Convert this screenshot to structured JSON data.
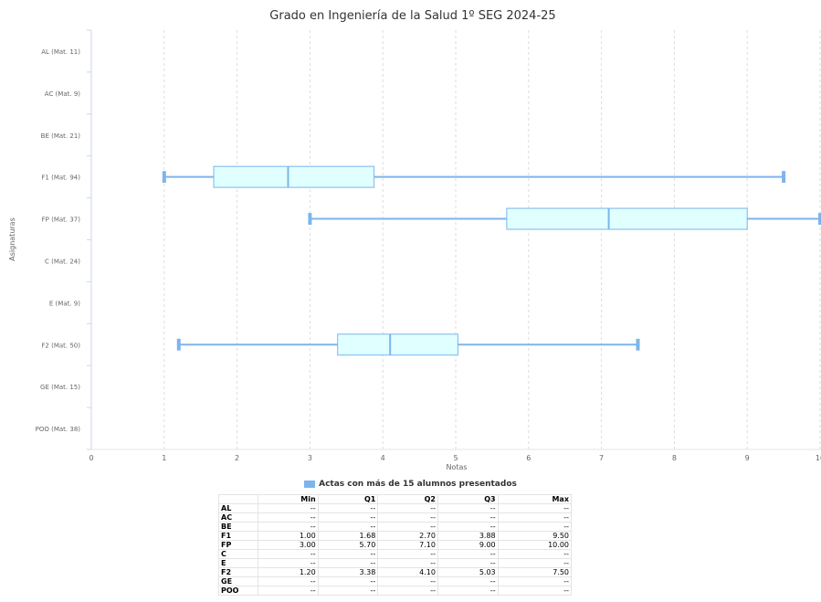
{
  "chart_data": {
    "type": "boxplot",
    "orientation": "horizontal",
    "title": "Grado en Ingeniería de la Salud 1º SEG 2024-25",
    "xlabel": "Notas",
    "ylabel": "Asignaturas",
    "xlim": [
      0,
      10
    ],
    "x_ticks": [
      "0",
      "1",
      "2",
      "3",
      "4",
      "5",
      "6",
      "7",
      "8",
      "9",
      "10"
    ],
    "grid": "vertical dashed",
    "categories": [
      "AL (Mat. 11)",
      "AC (Mat. 9)",
      "BE (Mat. 21)",
      "F1 (Mat. 94)",
      "FP (Mat. 37)",
      "C (Mat. 24)",
      "E (Mat. 9)",
      "F2 (Mat. 50)",
      "GE (Mat. 15)",
      "POO (Mat. 38)"
    ],
    "series": [
      {
        "name": "Actas con más de 15 alumnos presentados",
        "color": "#7cb5ec",
        "fill": "#e0ffff",
        "boxes": [
          null,
          null,
          null,
          {
            "min": 1.0,
            "q1": 1.68,
            "median": 2.7,
            "q3": 3.88,
            "max": 9.5
          },
          {
            "min": 3.0,
            "q1": 5.7,
            "median": 7.1,
            "q3": 9.0,
            "max": 10.0
          },
          null,
          null,
          {
            "min": 1.2,
            "q1": 3.38,
            "median": 4.1,
            "q3": 5.03,
            "max": 7.5
          },
          null,
          null
        ]
      }
    ],
    "legend": {
      "position": "bottom-center",
      "label": "Actas con más de 15 alumnos presentados"
    }
  },
  "table": {
    "headers": [
      "",
      "Min",
      "Q1",
      "Q2",
      "Q3",
      "Max"
    ],
    "rows": [
      {
        "label": "AL",
        "cells": [
          "--",
          "--",
          "--",
          "--",
          "--"
        ]
      },
      {
        "label": "AC",
        "cells": [
          "--",
          "--",
          "--",
          "--",
          "--"
        ]
      },
      {
        "label": "BE",
        "cells": [
          "--",
          "--",
          "--",
          "--",
          "--"
        ]
      },
      {
        "label": "F1",
        "cells": [
          "1.00",
          "1.68",
          "2.70",
          "3.88",
          "9.50"
        ]
      },
      {
        "label": "FP",
        "cells": [
          "3.00",
          "5.70",
          "7.10",
          "9.00",
          "10.00"
        ]
      },
      {
        "label": "C",
        "cells": [
          "--",
          "--",
          "--",
          "--",
          "--"
        ]
      },
      {
        "label": "E",
        "cells": [
          "--",
          "--",
          "--",
          "--",
          "--"
        ]
      },
      {
        "label": "F2",
        "cells": [
          "1.20",
          "3.38",
          "4.10",
          "5.03",
          "7.50"
        ]
      },
      {
        "label": "GE",
        "cells": [
          "--",
          "--",
          "--",
          "--",
          "--"
        ]
      },
      {
        "label": "POO",
        "cells": [
          "--",
          "--",
          "--",
          "--",
          "--"
        ]
      }
    ]
  }
}
